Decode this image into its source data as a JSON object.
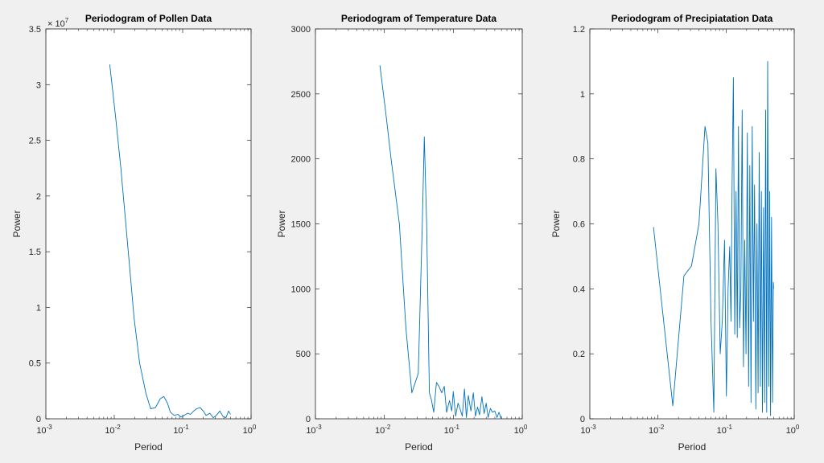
{
  "chart_data": [
    {
      "type": "line",
      "title": "Periodogram of Pollen Data",
      "xlabel": "Period",
      "ylabel": "Power",
      "xscale": "log",
      "xlim": [
        0.001,
        1
      ],
      "ylim": [
        0,
        35000000
      ],
      "y_multiplier": "× 10^7",
      "y_multiplier_base": "× 10",
      "y_multiplier_exp": "7",
      "yticks": [
        0,
        5000000,
        10000000,
        15000000,
        20000000,
        25000000,
        30000000,
        35000000
      ],
      "ytick_labels": [
        "0",
        "0.5",
        "1",
        "1.5",
        "2",
        "2.5",
        "3",
        "3.5"
      ],
      "xticks": [
        0.001,
        0.01,
        0.1,
        1
      ],
      "xtick_base": [
        "10",
        "10",
        "10",
        "10"
      ],
      "xtick_exp": [
        "-3",
        "-2",
        "-1",
        "0"
      ],
      "color": "#0072bd",
      "series": [
        {
          "x": [
            0.0086,
            0.0105,
            0.0125,
            0.016,
            0.0195,
            0.0235,
            0.029,
            0.034,
            0.04,
            0.047,
            0.053,
            0.06,
            0.066,
            0.075,
            0.085,
            0.095,
            0.105,
            0.118,
            0.13,
            0.145,
            0.16,
            0.18,
            0.2,
            0.22,
            0.25,
            0.28,
            0.31,
            0.35,
            0.39,
            0.43,
            0.47,
            0.5
          ],
          "y": [
            31800000,
            27000000,
            22500000,
            15000000,
            9000000,
            5000000,
            2300000,
            900000,
            1000000,
            1800000,
            2000000,
            1400000,
            600000,
            300000,
            400000,
            150000,
            300000,
            500000,
            400000,
            700000,
            900000,
            1000000,
            700000,
            300000,
            500000,
            100000,
            300000,
            700000,
            200000,
            100000,
            700000,
            400000
          ]
        }
      ]
    },
    {
      "type": "line",
      "title": "Periodogram of Temperature Data",
      "xlabel": "Period",
      "ylabel": "Power",
      "xscale": "log",
      "xlim": [
        0.001,
        1
      ],
      "ylim": [
        0,
        3000
      ],
      "yticks": [
        0,
        500,
        1000,
        1500,
        2000,
        2500,
        3000
      ],
      "ytick_labels": [
        "0",
        "500",
        "1000",
        "1500",
        "2000",
        "2500",
        "3000"
      ],
      "xticks": [
        0.001,
        0.01,
        0.1,
        1
      ],
      "xtick_base": [
        "10",
        "10",
        "10",
        "10"
      ],
      "xtick_exp": [
        "-3",
        "-2",
        "-1",
        "0"
      ],
      "color": "#0072bd",
      "series": [
        {
          "x": [
            0.0086,
            0.0105,
            0.0125,
            0.0165,
            0.0205,
            0.025,
            0.031,
            0.0355,
            0.038,
            0.041,
            0.045,
            0.048,
            0.052,
            0.057,
            0.062,
            0.068,
            0.074,
            0.08,
            0.088,
            0.095,
            0.1,
            0.108,
            0.117,
            0.125,
            0.135,
            0.145,
            0.155,
            0.165,
            0.18,
            0.195,
            0.21,
            0.225,
            0.24,
            0.26,
            0.28,
            0.3,
            0.32,
            0.345,
            0.37,
            0.4,
            0.43,
            0.46,
            0.49,
            0.5
          ],
          "y": [
            2720,
            2350,
            2000,
            1500,
            700,
            200,
            350,
            1500,
            2170,
            1500,
            200,
            150,
            50,
            280,
            250,
            200,
            250,
            50,
            140,
            60,
            210,
            20,
            120,
            80,
            20,
            230,
            10,
            180,
            60,
            200,
            20,
            90,
            30,
            170,
            40,
            120,
            10,
            80,
            50,
            60,
            10,
            50,
            5,
            20
          ]
        }
      ]
    },
    {
      "type": "line",
      "title": "Periodogram of Precipiatation Data",
      "xlabel": "Period",
      "ylabel": "Power",
      "xscale": "log",
      "xlim": [
        0.001,
        1
      ],
      "ylim": [
        0,
        1.2
      ],
      "yticks": [
        0,
        0.2,
        0.4,
        0.6,
        0.8,
        1,
        1.2
      ],
      "ytick_labels": [
        "0",
        "0.2",
        "0.4",
        "0.6",
        "0.8",
        "1",
        "1.2"
      ],
      "xticks": [
        0.001,
        0.01,
        0.1,
        1
      ],
      "xtick_base": [
        "10",
        "10",
        "10",
        "10"
      ],
      "xtick_exp": [
        "-3",
        "-2",
        "-1",
        "0"
      ],
      "color": "#0072bd",
      "series": [
        {
          "x": [
            0.0086,
            0.0165,
            0.024,
            0.031,
            0.04,
            0.049,
            0.054,
            0.06,
            0.066,
            0.071,
            0.076,
            0.082,
            0.088,
            0.095,
            0.101,
            0.107,
            0.113,
            0.118,
            0.123,
            0.128,
            0.134,
            0.14,
            0.146,
            0.152,
            0.158,
            0.165,
            0.172,
            0.18,
            0.188,
            0.196,
            0.205,
            0.214,
            0.223,
            0.232,
            0.242,
            0.252,
            0.262,
            0.273,
            0.284,
            0.295,
            0.306,
            0.318,
            0.33,
            0.342,
            0.355,
            0.368,
            0.381,
            0.394,
            0.408,
            0.422,
            0.436,
            0.45,
            0.465,
            0.48,
            0.495,
            0.5
          ],
          "y": [
            0.59,
            0.04,
            0.44,
            0.47,
            0.6,
            0.9,
            0.85,
            0.3,
            0.02,
            0.77,
            0.6,
            0.2,
            0.3,
            0.55,
            0.07,
            0.4,
            0.53,
            0.3,
            0.75,
            1.05,
            0.26,
            0.7,
            0.25,
            0.9,
            0.28,
            0.4,
            0.95,
            0.16,
            0.55,
            0.2,
            0.88,
            0.1,
            0.78,
            0.05,
            0.9,
            0.3,
            0.72,
            0.03,
            0.6,
            0.08,
            0.82,
            0.1,
            0.7,
            0.02,
            0.65,
            0.05,
            0.95,
            0.02,
            1.1,
            0.1,
            0.7,
            0.01,
            0.62,
            0.05,
            0.42,
            0.4
          ]
        }
      ]
    }
  ]
}
